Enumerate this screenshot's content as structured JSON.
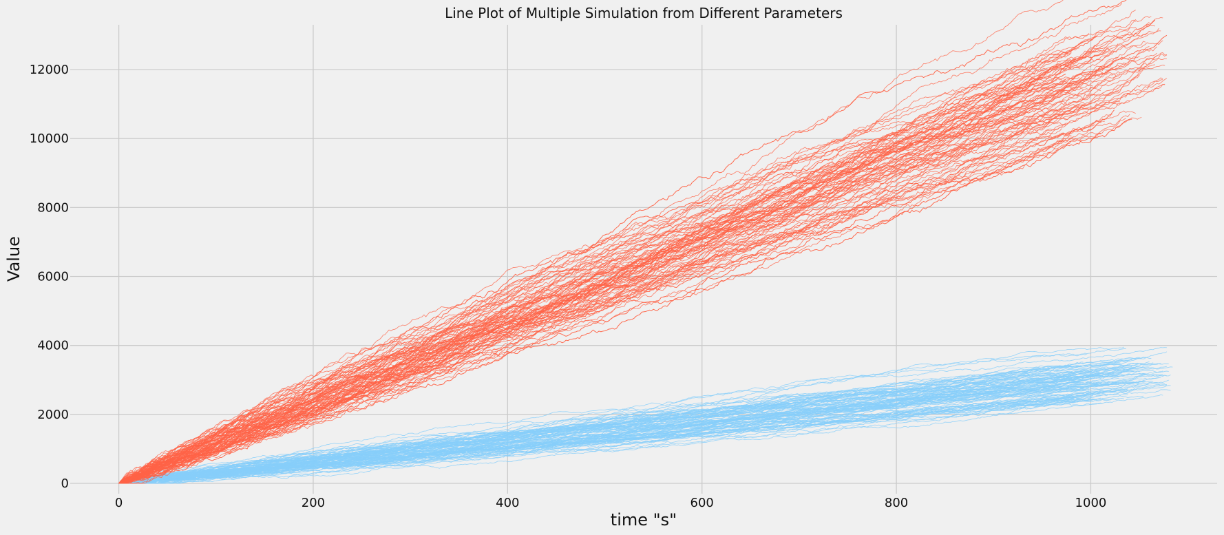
{
  "chart_data": {
    "type": "line",
    "title": "Line Plot of Multiple Simulation from Different Parameters",
    "xlabel": "time \"s\"",
    "ylabel": "Value",
    "xlim": [
      -50,
      1130
    ],
    "ylim": [
      -300,
      13300
    ],
    "xticks": [
      0,
      200,
      400,
      600,
      800,
      1000
    ],
    "yticks": [
      0,
      2000,
      4000,
      6000,
      8000,
      10000,
      12000
    ],
    "grid": true,
    "legend": "none",
    "colors": {
      "series_a": "#ff6347",
      "series_b": "#87cefa",
      "background": "#f0f0f0"
    },
    "series_groups": [
      {
        "color": "#ff6347",
        "count": 100,
        "x_range": [
          0,
          1080
        ],
        "y_start": 0,
        "y_end_range": [
          11000,
          12900
        ],
        "approx_slope": 11.6
      },
      {
        "color": "#87cefa",
        "count": 100,
        "x_range": [
          0,
          1085
        ],
        "y_start": 0,
        "y_end_range": [
          2700,
          3250
        ],
        "approx_slope": 2.9
      }
    ]
  }
}
